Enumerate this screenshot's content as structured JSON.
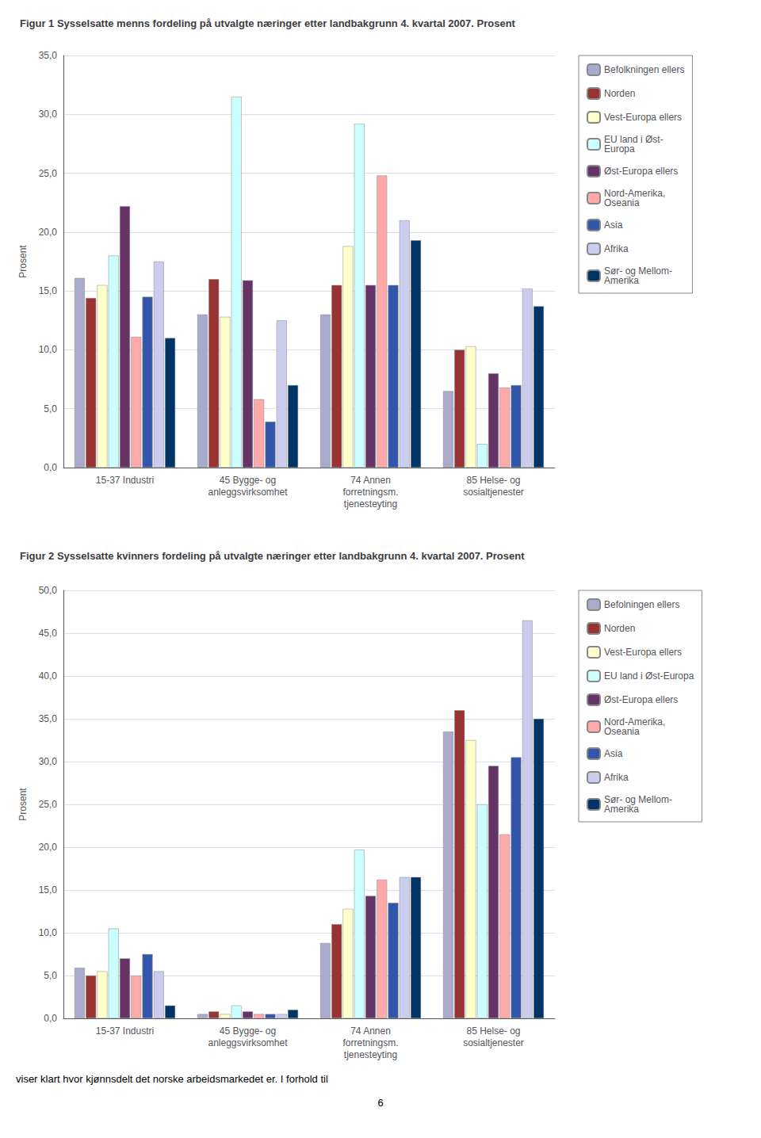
{
  "chart_data": [
    {
      "type": "bar",
      "title": "Figur 1 Sysselsatte menns fordeling på utvalgte næringer etter landbakgrunn 4. kvartal 2007. Prosent",
      "categories": [
        "15-37 Industri",
        "45 Bygge- og\nanleggsvirksomhet",
        "74 Annen\nforretningsm.\ntjenesteyting",
        "85 Helse- og\nsosialtjenester"
      ],
      "series": [
        {
          "name": "Befolkningen ellers",
          "color": "#AAAACC",
          "values": [
            16.1,
            13.0,
            13.0,
            6.5
          ]
        },
        {
          "name": "Norden",
          "color": "#993333",
          "values": [
            14.4,
            16.0,
            15.5,
            10.0
          ]
        },
        {
          "name": "Vest-Europa ellers",
          "color": "#FFFFCC",
          "values": [
            15.5,
            12.8,
            18.8,
            10.3
          ]
        },
        {
          "name": "EU land i Øst-\nEuropa",
          "color": "#CCFFFF",
          "values": [
            18.0,
            31.5,
            29.2,
            2.0
          ]
        },
        {
          "name": "Øst-Europa ellers",
          "color": "#663366",
          "values": [
            22.2,
            15.9,
            15.5,
            8.0
          ]
        },
        {
          "name": "Nord-Amerika,\nOseania",
          "color": "#FFAAAA",
          "values": [
            11.1,
            5.8,
            24.8,
            6.8
          ]
        },
        {
          "name": "Asia",
          "color": "#3355AA",
          "values": [
            14.5,
            3.9,
            15.5,
            7.0
          ]
        },
        {
          "name": "Afrika",
          "color": "#CCCCEE",
          "values": [
            17.5,
            12.5,
            21.0,
            15.2
          ]
        },
        {
          "name": "Sør- og Mellom-\nAmerika",
          "color": "#003366",
          "values": [
            11.0,
            7.0,
            19.3,
            13.7
          ]
        }
      ],
      "ylabel": "Prosent",
      "ylim": [
        0,
        35
      ],
      "yticks": [
        {
          "value": 0,
          "label": "0,0"
        },
        {
          "value": 5,
          "label": "5,0"
        },
        {
          "value": 10,
          "label": "10,0"
        },
        {
          "value": 15,
          "label": "15,0"
        },
        {
          "value": 20,
          "label": "20,0"
        },
        {
          "value": 25,
          "label": "25,0"
        },
        {
          "value": 30,
          "label": "30,0"
        },
        {
          "value": 35,
          "label": "35,0"
        }
      ],
      "grid": true,
      "legend": "right"
    },
    {
      "type": "bar",
      "title": "Figur 2 Sysselsatte kvinners fordeling på utvalgte næringer etter landbakgrunn 4. kvartal 2007. Prosent",
      "categories": [
        "15-37 Industri",
        "45 Bygge- og\nanleggsvirksomhet",
        "74 Annen\nforretningsm.\ntjenesteyting",
        "85 Helse- og\nsosialtjenester"
      ],
      "series": [
        {
          "name": "Befolningen ellers",
          "color": "#AAAACC",
          "values": [
            5.9,
            0.5,
            8.8,
            33.5
          ]
        },
        {
          "name": "Norden",
          "color": "#993333",
          "values": [
            5.0,
            0.8,
            11.0,
            36.0
          ]
        },
        {
          "name": "Vest-Europa ellers",
          "color": "#FFFFCC",
          "values": [
            5.5,
            0.5,
            12.8,
            32.5
          ]
        },
        {
          "name": "EU land i Øst-Europa",
          "color": "#CCFFFF",
          "values": [
            10.5,
            1.5,
            19.7,
            25.0
          ]
        },
        {
          "name": "Øst-Europa ellers",
          "color": "#663366",
          "values": [
            7.0,
            0.8,
            14.3,
            29.5
          ]
        },
        {
          "name": "Nord-Amerika,\nOseania",
          "color": "#FFAAAA",
          "values": [
            5.0,
            0.5,
            16.2,
            21.5
          ]
        },
        {
          "name": "Asia",
          "color": "#3355AA",
          "values": [
            7.5,
            0.5,
            13.5,
            30.5
          ]
        },
        {
          "name": "Afrika",
          "color": "#CCCCEE",
          "values": [
            5.5,
            0.5,
            16.5,
            46.5
          ]
        },
        {
          "name": "Sør- og Mellom-\nAmerika",
          "color": "#003366",
          "values": [
            1.5,
            1.0,
            16.5,
            35.0
          ]
        }
      ],
      "ylabel": "Prosent",
      "ylim": [
        0,
        50
      ],
      "yticks": [
        {
          "value": 0,
          "label": "0,0"
        },
        {
          "value": 5,
          "label": "5,0"
        },
        {
          "value": 10,
          "label": "10,0"
        },
        {
          "value": 15,
          "label": "15,0"
        },
        {
          "value": 20,
          "label": "20,0"
        },
        {
          "value": 25,
          "label": "25,0"
        },
        {
          "value": 30,
          "label": "30,0"
        },
        {
          "value": 35,
          "label": "35,0"
        },
        {
          "value": 40,
          "label": "40,0"
        },
        {
          "value": 45,
          "label": "45,0"
        },
        {
          "value": 50,
          "label": "50,0"
        }
      ],
      "grid": true,
      "legend": "right",
      "annotations": [
        "viser klart hvor kjønnsdelt det norske arbeidsmarkedet er. I forhold til",
        "6"
      ]
    }
  ]
}
